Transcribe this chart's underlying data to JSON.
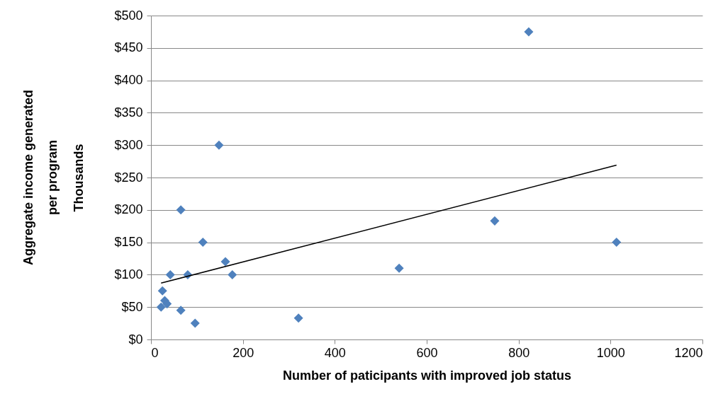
{
  "chart_data": {
    "type": "scatter",
    "xlabel": "Number of paticipants with improved job status",
    "ylabel": "Thousands",
    "annotations": [
      "Aggregate income generated\nper program"
    ],
    "xlim": [
      0,
      1200
    ],
    "xticks": [
      0,
      200,
      400,
      600,
      800,
      1000,
      1200
    ],
    "ylim": [
      0,
      500
    ],
    "yticks": [
      {
        "value": 0,
        "label": "$0"
      },
      {
        "value": 50,
        "label": "$50"
      },
      {
        "value": 100,
        "label": "$100"
      },
      {
        "value": 150,
        "label": "$150"
      },
      {
        "value": 200,
        "label": "$200"
      },
      {
        "value": 250,
        "label": "$250"
      },
      {
        "value": 300,
        "label": "$300"
      },
      {
        "value": 350,
        "label": "$350"
      },
      {
        "value": 400,
        "label": "$400"
      },
      {
        "value": 450,
        "label": "$450"
      },
      {
        "value": 500,
        "label": "$500"
      }
    ],
    "grid": "y",
    "series": [
      {
        "marker": "diamond",
        "color": "#4f81bd",
        "x": [
          822,
          148,
          65,
          113,
          162,
          177,
          42,
          80,
          25,
          30,
          35,
          22,
          65,
          96,
          321,
          540,
          748,
          1013
        ],
        "values": [
          475,
          300,
          200,
          150,
          120,
          100,
          100,
          100,
          75,
          60,
          55,
          50,
          45,
          25,
          33,
          110,
          183,
          150
        ]
      },
      {
        "type": "line",
        "color": "#000000",
        "x": [
          22,
          1013
        ],
        "values": [
          87,
          269
        ]
      }
    ]
  }
}
